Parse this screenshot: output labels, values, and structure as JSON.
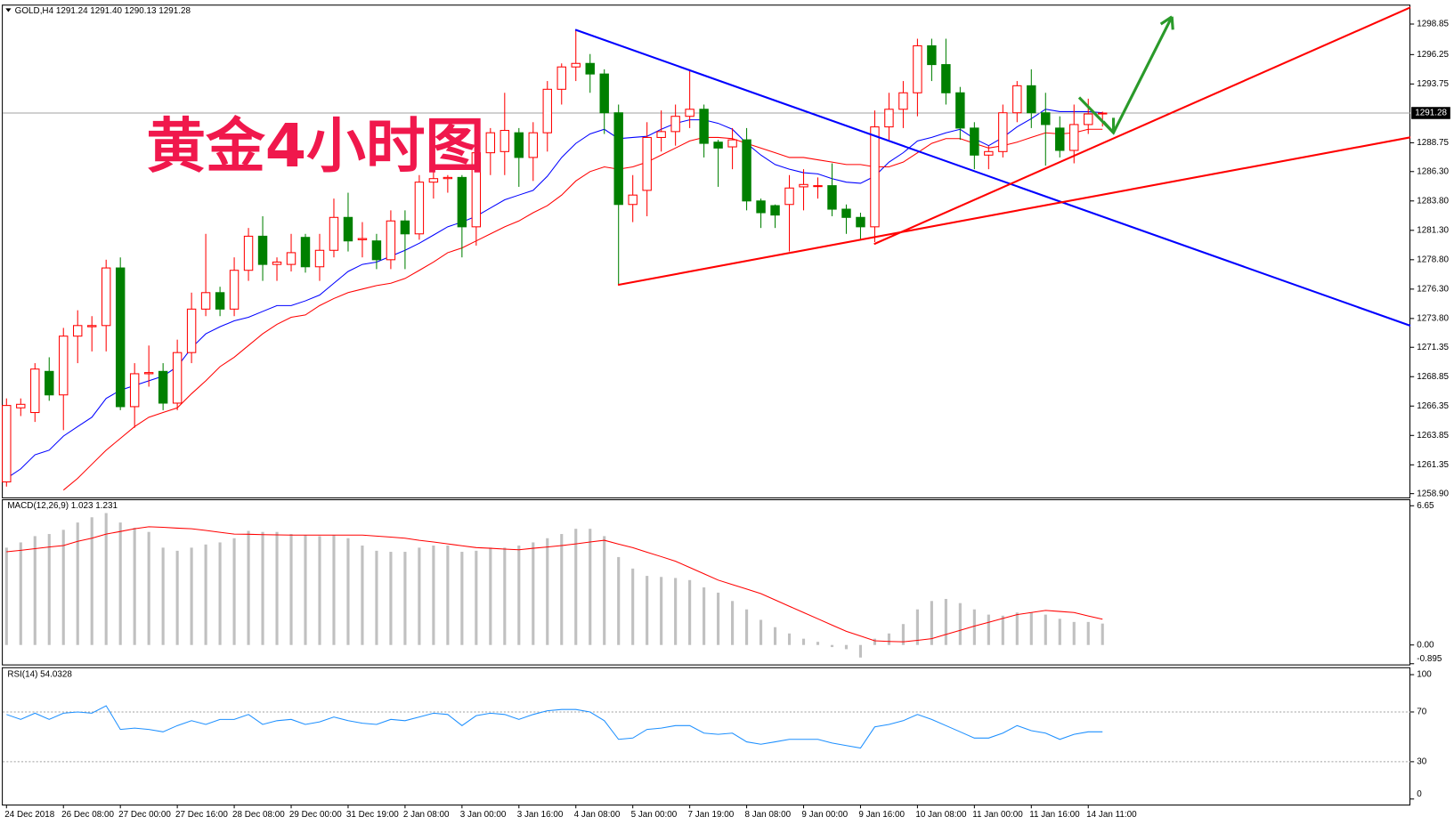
{
  "chart_data": [
    {
      "type": "candlestick",
      "title": "GOLD,H4  1291.24 1291.40 1290.13 1291.28",
      "annotation": "黄金4小时图",
      "categories": [
        "24 Dec 2018",
        null,
        null,
        null,
        "26 Dec 08:00",
        null,
        null,
        null,
        "27 Dec 00:00",
        null,
        null,
        null,
        "27 Dec 16:00",
        null,
        null,
        null,
        "28 Dec 08:00",
        null,
        null,
        null,
        "29 Dec 00:00",
        null,
        null,
        null,
        "31 Dec 19:00",
        null,
        null,
        null,
        "2 Jan 08:00",
        null,
        null,
        null,
        "3 Jan 00:00",
        null,
        null,
        null,
        "3 Jan 16:00",
        null,
        null,
        null,
        "4 Jan 08:00",
        null,
        null,
        null,
        "5 Jan 00:00",
        null,
        null,
        null,
        "7 Jan 19:00",
        null,
        null,
        null,
        "8 Jan 08:00",
        null,
        null,
        null,
        "9 Jan 00:00",
        null,
        null,
        null,
        "9 Jan 16:00",
        null,
        null,
        null,
        "10 Jan 08:00",
        null,
        null,
        null,
        "11 Jan 00:00",
        null,
        null,
        null,
        "11 Jan 16:00",
        null,
        null,
        null,
        "14 Jan 11:00",
        null
      ],
      "open": [
        1259.9,
        1266.2,
        1265.8,
        1269.3,
        1267.3,
        1272.3,
        1273.1,
        1273.2,
        1278.1,
        1266.3,
        1269.1,
        1269.3,
        1266.6,
        1270.9,
        1274.6,
        1276.0,
        1274.6,
        1277.9,
        1280.8,
        1278.4,
        1278.4,
        1280.7,
        1278.2,
        1279.6,
        1282.4,
        1280.5,
        1280.4,
        1278.8,
        1282.1,
        1281.0,
        1285.4,
        1285.7,
        1285.8,
        1281.6,
        1287.9,
        1288.0,
        1289.6,
        1287.5,
        1289.6,
        1293.3,
        1295.2,
        1295.5,
        1294.6,
        1291.3,
        1283.5,
        1284.7,
        1289.2,
        1289.7,
        1291.0,
        1291.6,
        1288.8,
        1288.4,
        1289.0,
        1283.8,
        1283.4,
        1283.5,
        1285.0,
        1285.1,
        1285.1,
        1283.1,
        1282.4,
        1281.6,
        1290.1,
        1291.6,
        1293.0,
        1297.0,
        1295.4,
        1293.0,
        1290.0,
        1287.7,
        1288.0,
        1291.3,
        1293.6,
        1291.3,
        1290.0,
        1288.1,
        1290.3,
        1291.24
      ],
      "high": [
        1267.0,
        1267.0,
        1270.0,
        1270.5,
        1273.0,
        1274.5,
        1274.0,
        1278.8,
        1279.0,
        1270.0,
        1271.5,
        1270.0,
        1272.0,
        1276.0,
        1281.0,
        1276.5,
        1279.0,
        1281.5,
        1282.5,
        1279.0,
        1281.0,
        1281.0,
        1281.0,
        1284.0,
        1284.5,
        1282.0,
        1281.0,
        1283.0,
        1283.0,
        1286.0,
        1286.5,
        1286.0,
        1286.0,
        1289.0,
        1290.0,
        1293.0,
        1290.0,
        1290.5,
        1294.0,
        1295.5,
        1298.4,
        1296.3,
        1295.0,
        1292.0,
        1286.0,
        1290.5,
        1291.5,
        1292.0,
        1295.0,
        1292.0,
        1289.0,
        1290.0,
        1290.0,
        1284.0,
        1283.5,
        1286.0,
        1286.5,
        1285.8,
        1287.0,
        1283.5,
        1282.8,
        1291.5,
        1293.0,
        1294.0,
        1297.6,
        1297.6,
        1297.6,
        1293.5,
        1290.5,
        1288.5,
        1292.0,
        1294.0,
        1295.0,
        1293.0,
        1291.0,
        1292.0,
        1292.5,
        1291.4
      ],
      "low": [
        1259.5,
        1265.5,
        1265.0,
        1266.8,
        1264.3,
        1270.0,
        1271.0,
        1271.0,
        1266.0,
        1264.5,
        1268.0,
        1266.0,
        1266.0,
        1270.0,
        1274.0,
        1274.0,
        1274.0,
        1277.0,
        1277.0,
        1277.0,
        1277.8,
        1277.7,
        1277.0,
        1279.0,
        1279.5,
        1279.0,
        1278.0,
        1278.0,
        1278.0,
        1280.5,
        1284.0,
        1284.5,
        1279.0,
        1280.0,
        1286.0,
        1286.0,
        1285.0,
        1285.5,
        1288.0,
        1292.0,
        1294.0,
        1293.0,
        1289.5,
        1276.7,
        1282.0,
        1282.5,
        1288.0,
        1288.5,
        1290.0,
        1287.5,
        1285.0,
        1286.5,
        1283.0,
        1281.5,
        1281.5,
        1279.5,
        1283.0,
        1284.0,
        1282.5,
        1281.0,
        1280.5,
        1280.3,
        1289.0,
        1290.0,
        1291.0,
        1294.0,
        1292.0,
        1289.0,
        1286.5,
        1286.5,
        1287.5,
        1290.5,
        1290.0,
        1286.8,
        1287.5,
        1287.0,
        1289.5,
        1290.13
      ],
      "close": [
        1266.4,
        1266.5,
        1269.5,
        1267.3,
        1272.3,
        1273.2,
        1273.2,
        1278.1,
        1266.3,
        1269.1,
        1269.2,
        1266.6,
        1270.9,
        1274.6,
        1276.0,
        1274.6,
        1277.9,
        1280.8,
        1278.4,
        1278.6,
        1279.4,
        1278.2,
        1279.6,
        1282.4,
        1280.4,
        1280.6,
        1278.8,
        1282.1,
        1281.0,
        1285.4,
        1285.7,
        1285.8,
        1281.6,
        1287.9,
        1289.6,
        1289.8,
        1287.5,
        1289.6,
        1293.3,
        1295.2,
        1295.5,
        1294.6,
        1291.3,
        1283.5,
        1284.3,
        1289.2,
        1289.7,
        1291.0,
        1291.6,
        1288.7,
        1288.3,
        1289.0,
        1283.8,
        1282.8,
        1282.6,
        1284.9,
        1285.2,
        1285.1,
        1283.1,
        1282.4,
        1281.6,
        1290.1,
        1291.6,
        1293.0,
        1297.0,
        1295.4,
        1293.0,
        1290.0,
        1287.7,
        1288.0,
        1291.3,
        1293.6,
        1291.3,
        1290.3,
        1288.1,
        1290.3,
        1291.2,
        1291.28
      ],
      "colors": {
        "up": "#ff0000",
        "up_body": "#ffffff",
        "down": "#008000"
      },
      "lines": [
        {
          "color": "#0000ff",
          "values": [
            1260.2,
            1261.0,
            1262.2,
            1262.6,
            1263.8,
            1264.6,
            1265.4,
            1267.0,
            1267.7,
            1268.1,
            1268.5,
            1268.9,
            1269.7,
            1271.3,
            1272.5,
            1273.1,
            1273.6,
            1273.9,
            1274.4,
            1274.9,
            1274.9,
            1275.3,
            1275.8,
            1276.8,
            1277.8,
            1278.4,
            1278.6,
            1279.1,
            1279.6,
            1280.2,
            1280.9,
            1281.6,
            1282.0,
            1282.5,
            1283.2,
            1283.9,
            1284.3,
            1284.7,
            1285.9,
            1287.5,
            1288.7,
            1289.5,
            1289.9,
            1289.1,
            1289.2,
            1289.3,
            1289.9,
            1290.4,
            1290.7,
            1290.7,
            1290.4,
            1289.9,
            1288.7,
            1287.7,
            1286.9,
            1286.5,
            1286.2,
            1286.1,
            1285.7,
            1285.4,
            1285.3,
            1285.9,
            1287.1,
            1287.9,
            1288.9,
            1289.2,
            1289.6,
            1289.9,
            1289.1,
            1288.5,
            1289.2,
            1290.1,
            1290.8,
            1291.6,
            1291.4,
            1291.4,
            1291.4,
            1291.3
          ]
        },
        {
          "color": "#ff0000",
          "values": [
            null,
            null,
            null,
            null,
            1259.2,
            1260.2,
            1261.4,
            1262.6,
            1263.6,
            1264.6,
            1265.4,
            1265.8,
            1266.2,
            1267.4,
            1268.5,
            1269.7,
            1270.5,
            1271.5,
            1272.5,
            1273.3,
            1273.9,
            1274.1,
            1274.9,
            1275.5,
            1276.0,
            1276.3,
            1276.6,
            1276.8,
            1277.2,
            1277.9,
            1278.6,
            1279.4,
            1279.8,
            1280.4,
            1281.0,
            1281.6,
            1282.1,
            1282.8,
            1283.4,
            1284.3,
            1285.5,
            1286.3,
            1286.7,
            1286.5,
            1286.7,
            1287.1,
            1287.7,
            1288.3,
            1288.9,
            1289.2,
            1289.2,
            1289.1,
            1288.7,
            1288.3,
            1287.9,
            1287.5,
            1287.5,
            1287.3,
            1287.1,
            1286.9,
            1286.9,
            1286.7,
            1286.7,
            1287.1,
            1287.9,
            1288.7,
            1289.1,
            1289.1,
            1288.7,
            1288.3,
            1288.5,
            1288.8,
            1289.2,
            1289.6,
            1289.5,
            1289.6,
            1289.9,
            1289.9
          ]
        }
      ],
      "current_price": {
        "value": 1291.28,
        "label": "1291.28"
      },
      "ylim": [
        1258.5,
        1300.5
      ],
      "yticks": [
        {
          "value": 1258.9,
          "label": "1258.90"
        },
        1261.35,
        1263.85,
        1266.35,
        1268.85,
        1271.35,
        {
          "value": 1273.8,
          "label": "1273.80"
        },
        {
          "value": 1276.3,
          "label": "1276.30"
        },
        {
          "value": 1278.8,
          "label": "1278.80"
        },
        {
          "value": 1281.3,
          "label": "1281.30"
        },
        {
          "value": 1283.8,
          "label": "1283.80"
        },
        {
          "value": 1286.3,
          "label": "1286.30"
        },
        1288.75,
        1293.75,
        1296.25,
        1298.85
      ]
    },
    {
      "type": "macd",
      "title": "MACD(12,26,9) 1.023 1.231",
      "values": [
        4.65,
        4.9,
        5.2,
        5.3,
        5.5,
        5.85,
        6.1,
        6.3,
        5.85,
        5.6,
        5.4,
        4.65,
        4.5,
        4.65,
        4.8,
        4.9,
        5.1,
        5.45,
        5.4,
        5.4,
        5.3,
        5.25,
        5.2,
        5.25,
        5.1,
        4.75,
        4.5,
        4.45,
        4.45,
        4.65,
        4.75,
        4.75,
        4.45,
        4.5,
        4.65,
        4.65,
        4.75,
        4.9,
        5.1,
        5.3,
        5.55,
        5.55,
        5.2,
        4.2,
        3.65,
        3.3,
        3.25,
        3.2,
        3.1,
        2.75,
        2.5,
        2.1,
        1.7,
        1.2,
        0.85,
        0.55,
        0.3,
        0.15,
        -0.1,
        -0.2,
        -0.6,
        0.3,
        0.55,
        1.0,
        1.7,
        2.1,
        2.2,
        2.0,
        1.7,
        1.45,
        1.4,
        1.55,
        1.55,
        1.45,
        1.25,
        1.1,
        1.1,
        1.023
      ],
      "color": "#c0c0c0",
      "signal": [
        4.45,
        4.52,
        4.6,
        4.68,
        4.75,
        4.95,
        5.1,
        5.3,
        5.42,
        5.55,
        5.65,
        5.62,
        5.58,
        5.55,
        5.47,
        5.38,
        5.3,
        5.29,
        5.27,
        5.26,
        5.25,
        5.25,
        5.25,
        5.25,
        5.25,
        5.25,
        5.2,
        5.15,
        5.1,
        5.0,
        4.92,
        4.83,
        4.74,
        4.65,
        4.62,
        4.58,
        4.55,
        4.62,
        4.68,
        4.75,
        4.83,
        4.92,
        5.0,
        4.82,
        4.65,
        4.43,
        4.22,
        4.0,
        3.7,
        3.4,
        3.1,
        2.88,
        2.67,
        2.45,
        2.15,
        1.85,
        1.55,
        1.25,
        0.95,
        0.65,
        0.43,
        0.2,
        0.17,
        0.15,
        0.22,
        0.3,
        0.5,
        0.7,
        0.9,
        1.08,
        1.27,
        1.45,
        1.55,
        1.65,
        1.6,
        1.55,
        1.39,
        1.231
      ],
      "signal_color": "#ff0000",
      "ylim": [
        -0.895,
        6.65
      ],
      "yticks": [
        6.65,
        {
          "value": 0,
          "label": "0.00"
        },
        -0.895
      ]
    },
    {
      "type": "line",
      "title": "RSI(14) 54.0328",
      "values": [
        68,
        64,
        69,
        64,
        69,
        70,
        69,
        75,
        56,
        57,
        56,
        54,
        59,
        63,
        60,
        64,
        64,
        68,
        60,
        63,
        64,
        60,
        62,
        66,
        63,
        61,
        60,
        64,
        63,
        66,
        69,
        68,
        59,
        67,
        69,
        68,
        64,
        68,
        71,
        72,
        72,
        70,
        63,
        48,
        49,
        56,
        57,
        59,
        59,
        53,
        52,
        53,
        46,
        44,
        46,
        48,
        48,
        48,
        45,
        43,
        41,
        58,
        60,
        63,
        68,
        64,
        59,
        54,
        49,
        49,
        53,
        59,
        55,
        53,
        48,
        52,
        54,
        54.0328
      ],
      "color": "#1e90ff",
      "ylim": [
        0,
        100
      ],
      "yticks": [
        100,
        70,
        30,
        0
      ]
    }
  ]
}
